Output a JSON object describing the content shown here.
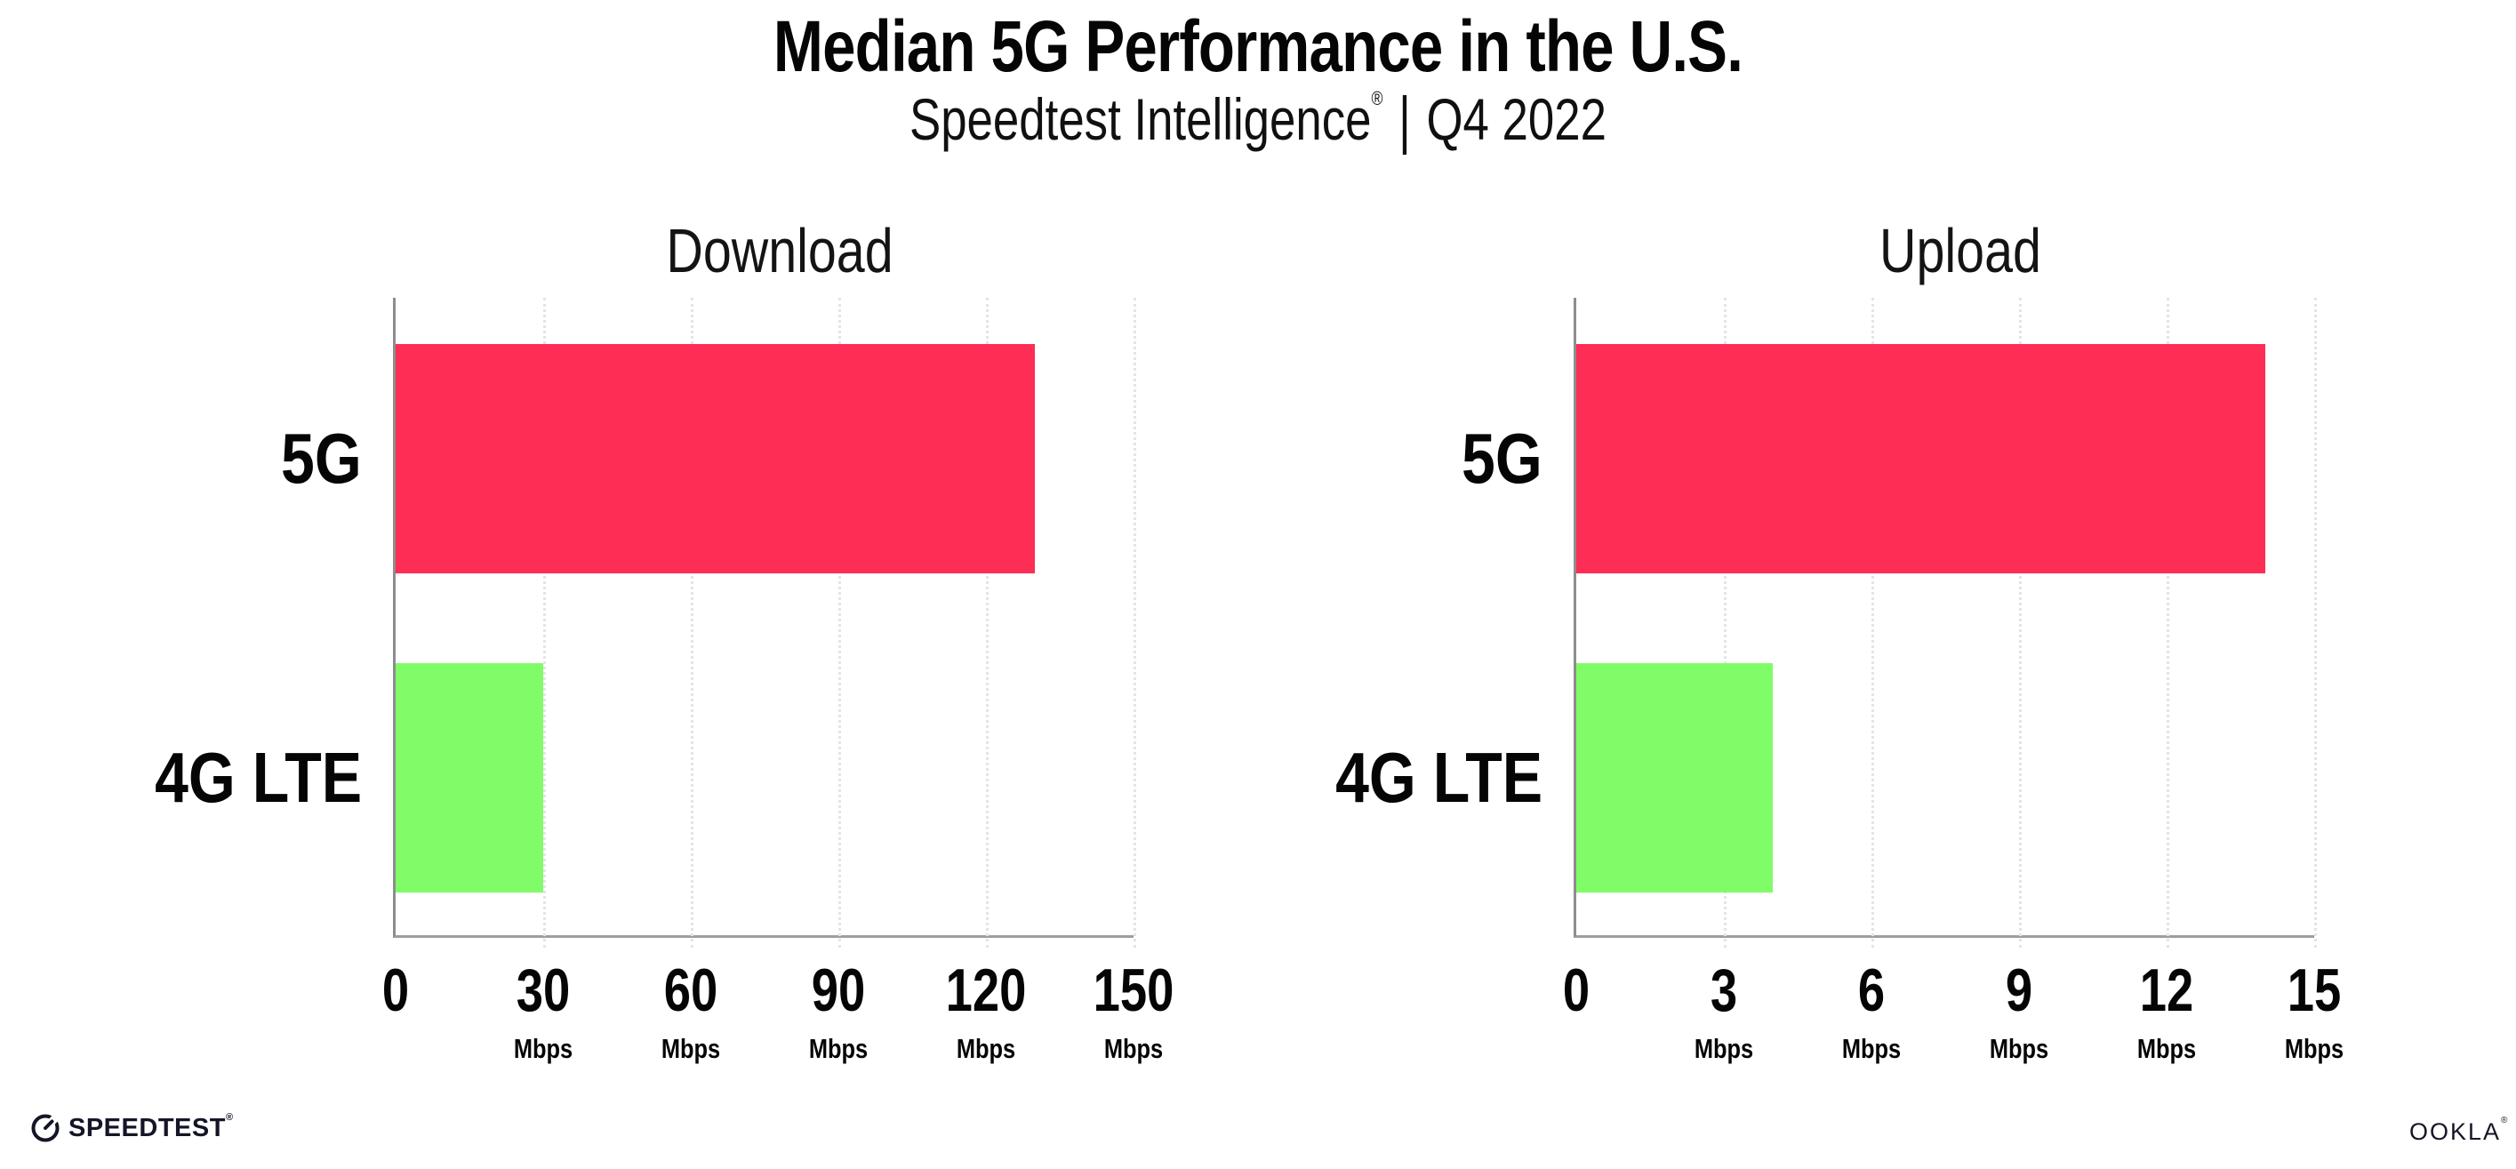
{
  "header": {
    "title": "Median 5G Performance in the U.S.",
    "subtitle_brand": "Speedtest Intelligence",
    "subtitle_reg": "®",
    "subtitle_sep": "|",
    "subtitle_period": "Q4 2022"
  },
  "colors": {
    "bar_5g": "#fe2d55",
    "bar_4g_lte": "#80fc68",
    "gridline": "#e3e3ed",
    "axis": "#9e9e9e",
    "text": "#050505"
  },
  "chart_data": [
    {
      "type": "bar",
      "orientation": "horizontal",
      "title": "Download",
      "categories": [
        "5G",
        "4G LTE"
      ],
      "values": [
        130,
        30
      ],
      "unit": "Mbps",
      "xlim": [
        0,
        150
      ],
      "xticks": [
        0,
        30,
        60,
        90,
        120,
        150
      ],
      "tick_unit": "Mbps",
      "grid": "dotted-vertical",
      "legend": "none",
      "bar_colors": [
        "#fe2d55",
        "#80fc68"
      ]
    },
    {
      "type": "bar",
      "orientation": "horizontal",
      "title": "Upload",
      "categories": [
        "5G",
        "4G LTE"
      ],
      "values": [
        14,
        4
      ],
      "unit": "Mbps",
      "xlim": [
        0,
        15
      ],
      "xticks": [
        0,
        3,
        6,
        9,
        12,
        15
      ],
      "tick_unit": "Mbps",
      "grid": "dotted-vertical",
      "legend": "none",
      "bar_colors": [
        "#fe2d55",
        "#80fc68"
      ]
    }
  ],
  "footer": {
    "speedtest_label": "SPEEDTEST",
    "speedtest_reg": "®",
    "ookla_label": "OOKLA",
    "ookla_reg": "®"
  }
}
